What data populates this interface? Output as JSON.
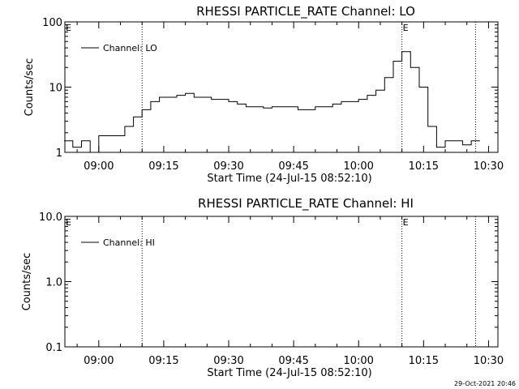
{
  "footer": {
    "timestamp": "29-Oct-2021 20:46"
  },
  "chart_data": [
    {
      "type": "line",
      "title": "RHESSI PARTICLE_RATE Channel: LO",
      "xlabel": "Start Time (24-Jul-15 08:52:10)",
      "ylabel": "Counts/sec",
      "yscale": "log",
      "ylim": [
        1,
        100
      ],
      "yticks": [
        1,
        10,
        100
      ],
      "ytick_labels": [
        "1",
        "10",
        "100"
      ],
      "xlim": [
        "08:52:10",
        "10:32:10"
      ],
      "xticks": [
        "09:00",
        "09:15",
        "09:30",
        "09:45",
        "10:00",
        "10:15",
        "10:30"
      ],
      "legend": "top-left",
      "series": [
        {
          "name": "Channel: LO",
          "x": [
            "08:52",
            "08:54",
            "08:56",
            "08:58",
            "09:00",
            "09:02",
            "09:04",
            "09:06",
            "09:08",
            "09:10",
            "09:12",
            "09:14",
            "09:16",
            "09:18",
            "09:20",
            "09:22",
            "09:24",
            "09:26",
            "09:28",
            "09:30",
            "09:32",
            "09:34",
            "09:36",
            "09:38",
            "09:40",
            "09:42",
            "09:44",
            "09:46",
            "09:48",
            "09:50",
            "09:52",
            "09:54",
            "09:56",
            "09:58",
            "10:00",
            "10:02",
            "10:04",
            "10:06",
            "10:08",
            "10:10",
            "10:12",
            "10:14",
            "10:16",
            "10:18",
            "10:20",
            "10:22",
            "10:24",
            "10:26"
          ],
          "values": [
            1.5,
            1.2,
            1.5,
            1.0,
            1.8,
            1.8,
            1.8,
            2.5,
            3.5,
            4.5,
            6.0,
            7.0,
            7.0,
            7.5,
            8.0,
            7.0,
            7.0,
            6.5,
            6.5,
            6.0,
            5.5,
            5.0,
            5.0,
            4.8,
            5.0,
            5.0,
            5.0,
            4.5,
            4.5,
            5.0,
            5.0,
            5.5,
            6.0,
            6.0,
            6.5,
            7.5,
            9.0,
            14.0,
            25.0,
            35.0,
            20.0,
            10.0,
            2.5,
            1.2,
            1.5,
            1.5,
            1.3,
            1.5
          ]
        }
      ],
      "markers": [
        {
          "time": "09:10",
          "label": ""
        },
        {
          "time": "10:10",
          "label": "E"
        },
        {
          "time": "10:27",
          "label": ""
        }
      ],
      "top_left_marker": "E"
    },
    {
      "type": "line",
      "title": "RHESSI PARTICLE_RATE Channel: HI",
      "xlabel": "Start Time (24-Jul-15 08:52:10)",
      "ylabel": "Counts/sec",
      "yscale": "log",
      "ylim": [
        0.1,
        10
      ],
      "yticks": [
        0.1,
        1,
        10
      ],
      "ytick_labels": [
        "0.1",
        "1.0",
        "10.0"
      ],
      "xlim": [
        "08:52:10",
        "10:32:10"
      ],
      "xticks": [
        "09:00",
        "09:15",
        "09:30",
        "09:45",
        "10:00",
        "10:15",
        "10:30"
      ],
      "legend": "top-left",
      "series": [
        {
          "name": "Channel: HI",
          "x": [],
          "values": []
        }
      ],
      "markers": [
        {
          "time": "09:10",
          "label": ""
        },
        {
          "time": "10:10",
          "label": "E"
        },
        {
          "time": "10:27",
          "label": ""
        }
      ],
      "top_left_marker": "E"
    }
  ]
}
